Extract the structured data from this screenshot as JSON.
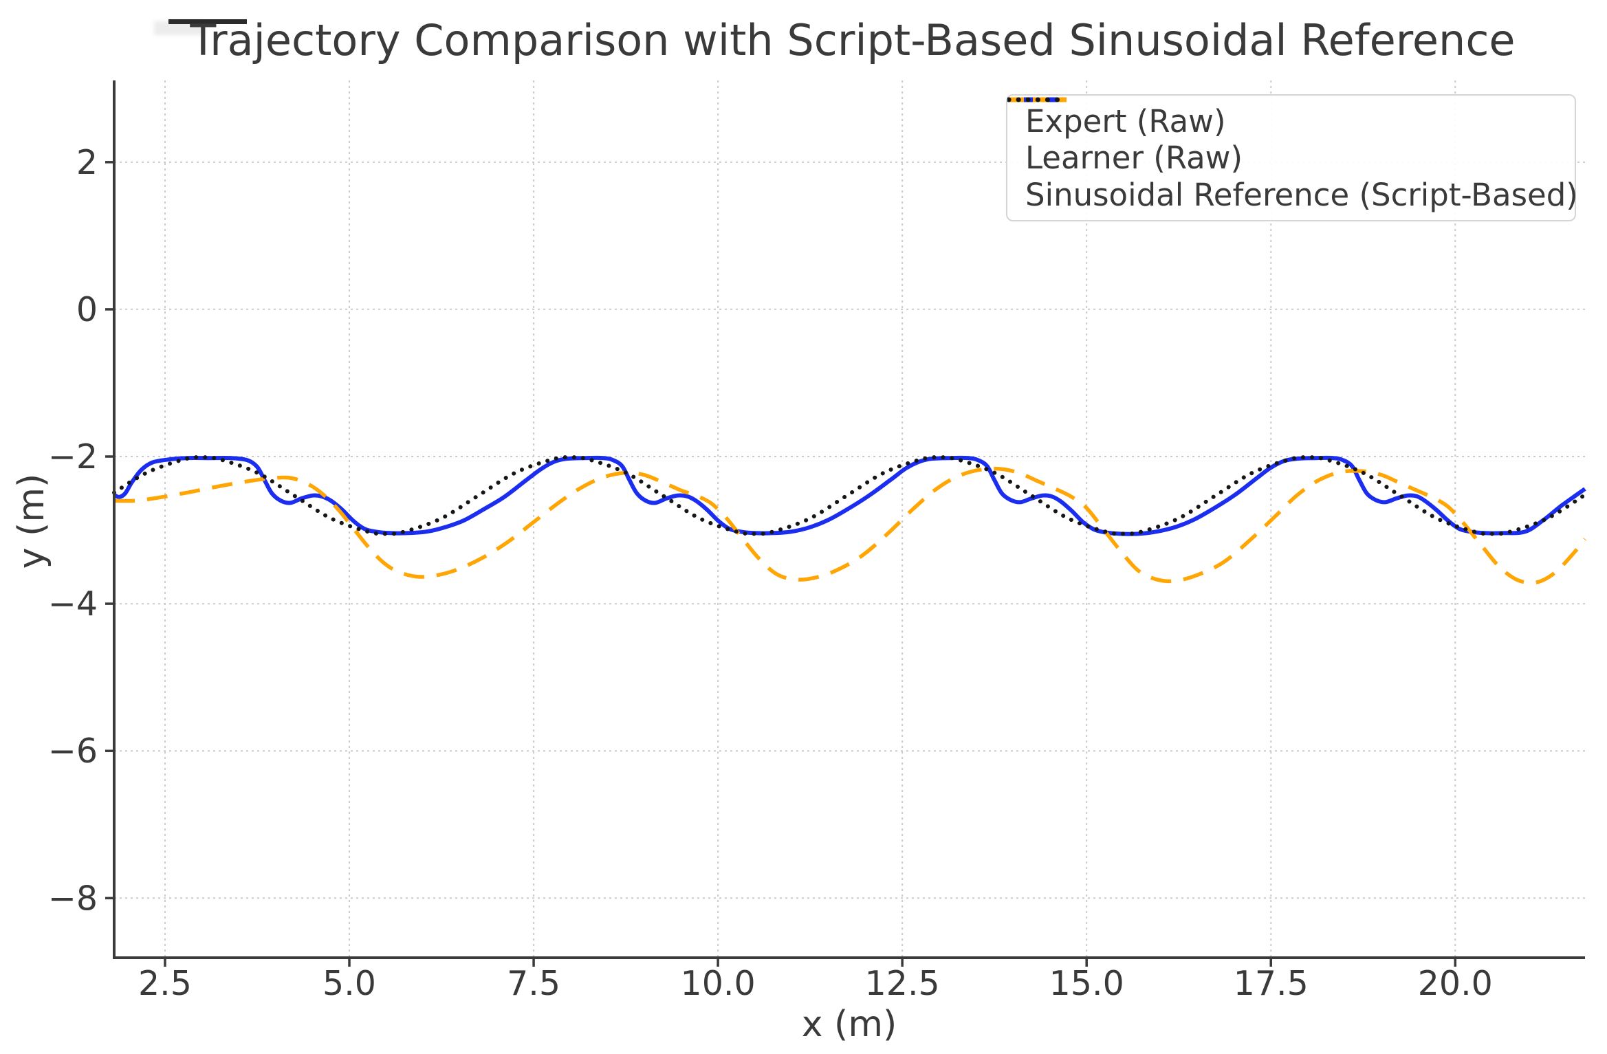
{
  "chart_data": {
    "type": "line",
    "title": "Trajectory Comparison with Script-Based Sinusoidal Reference",
    "xlabel": "x (m)",
    "ylabel": "y (m)",
    "xlim": [
      1.81,
      21.76
    ],
    "ylim": [
      -8.81,
      3.11
    ],
    "grid": true,
    "grid_color": "#cbcbcb",
    "axis_color": "#3a3a3a",
    "text_color": "#3a3a3a",
    "xticks": {
      "values": [
        2.5,
        5.0,
        7.5,
        10.0,
        12.5,
        15.0,
        17.5,
        20.0
      ],
      "labels": [
        "2.5",
        "5.0",
        "7.5",
        "10.0",
        "12.5",
        "15.0",
        "17.5",
        "20.0"
      ]
    },
    "yticks": {
      "values": [
        2,
        0,
        -2,
        -4,
        -6,
        -8
      ],
      "labels": [
        "2",
        "0",
        "−2",
        "−4",
        "−6",
        "−8"
      ]
    },
    "legend": {
      "position": "upper right",
      "border_color": "#d5d5d5"
    },
    "series": [
      {
        "name": "Expert (Raw)",
        "color": "#1b2ef0",
        "style": "solid",
        "width": 6,
        "points": [
          [
            1.81,
            -2.52
          ],
          [
            1.88,
            -2.55
          ],
          [
            1.96,
            -2.5
          ],
          [
            2.05,
            -2.35
          ],
          [
            2.18,
            -2.18
          ],
          [
            2.33,
            -2.08
          ],
          [
            2.55,
            -2.04
          ],
          [
            2.8,
            -2.02
          ],
          [
            3.1,
            -2.02
          ],
          [
            3.4,
            -2.02
          ],
          [
            3.62,
            -2.05
          ],
          [
            3.75,
            -2.14
          ],
          [
            3.85,
            -2.32
          ],
          [
            3.95,
            -2.5
          ],
          [
            4.07,
            -2.6
          ],
          [
            4.2,
            -2.63
          ],
          [
            4.35,
            -2.57
          ],
          [
            4.5,
            -2.53
          ],
          [
            4.62,
            -2.54
          ],
          [
            4.75,
            -2.6
          ],
          [
            4.9,
            -2.72
          ],
          [
            5.05,
            -2.87
          ],
          [
            5.2,
            -2.98
          ],
          [
            5.35,
            -3.02
          ],
          [
            5.55,
            -3.04
          ],
          [
            5.8,
            -3.04
          ],
          [
            6.05,
            -3.02
          ],
          [
            6.3,
            -2.96
          ],
          [
            6.55,
            -2.87
          ],
          [
            6.8,
            -2.73
          ],
          [
            7.1,
            -2.55
          ],
          [
            7.4,
            -2.32
          ],
          [
            7.6,
            -2.17
          ],
          [
            7.78,
            -2.07
          ],
          [
            7.95,
            -2.03
          ],
          [
            8.2,
            -2.02
          ],
          [
            8.45,
            -2.02
          ],
          [
            8.58,
            -2.05
          ],
          [
            8.7,
            -2.13
          ],
          [
            8.8,
            -2.32
          ],
          [
            8.9,
            -2.5
          ],
          [
            9.02,
            -2.6
          ],
          [
            9.15,
            -2.63
          ],
          [
            9.3,
            -2.57
          ],
          [
            9.45,
            -2.53
          ],
          [
            9.58,
            -2.54
          ],
          [
            9.7,
            -2.6
          ],
          [
            9.85,
            -2.72
          ],
          [
            10.0,
            -2.87
          ],
          [
            10.15,
            -2.98
          ],
          [
            10.3,
            -3.02
          ],
          [
            10.5,
            -3.04
          ],
          [
            10.75,
            -3.04
          ],
          [
            11.0,
            -3.02
          ],
          [
            11.25,
            -2.96
          ],
          [
            11.5,
            -2.86
          ],
          [
            11.75,
            -2.72
          ],
          [
            12.05,
            -2.53
          ],
          [
            12.35,
            -2.31
          ],
          [
            12.55,
            -2.16
          ],
          [
            12.73,
            -2.07
          ],
          [
            12.9,
            -2.03
          ],
          [
            13.15,
            -2.02
          ],
          [
            13.4,
            -2.02
          ],
          [
            13.53,
            -2.05
          ],
          [
            13.65,
            -2.13
          ],
          [
            13.75,
            -2.32
          ],
          [
            13.85,
            -2.5
          ],
          [
            13.97,
            -2.59
          ],
          [
            14.1,
            -2.62
          ],
          [
            14.25,
            -2.57
          ],
          [
            14.4,
            -2.53
          ],
          [
            14.52,
            -2.54
          ],
          [
            14.65,
            -2.61
          ],
          [
            14.8,
            -2.74
          ],
          [
            14.95,
            -2.89
          ],
          [
            15.1,
            -2.99
          ],
          [
            15.25,
            -3.03
          ],
          [
            15.45,
            -3.05
          ],
          [
            15.7,
            -3.05
          ],
          [
            15.95,
            -3.02
          ],
          [
            16.2,
            -2.96
          ],
          [
            16.45,
            -2.86
          ],
          [
            16.7,
            -2.72
          ],
          [
            17.0,
            -2.53
          ],
          [
            17.3,
            -2.3
          ],
          [
            17.5,
            -2.15
          ],
          [
            17.68,
            -2.06
          ],
          [
            17.85,
            -2.03
          ],
          [
            18.1,
            -2.02
          ],
          [
            18.35,
            -2.02
          ],
          [
            18.48,
            -2.05
          ],
          [
            18.6,
            -2.13
          ],
          [
            18.7,
            -2.32
          ],
          [
            18.8,
            -2.5
          ],
          [
            18.92,
            -2.59
          ],
          [
            19.05,
            -2.62
          ],
          [
            19.2,
            -2.57
          ],
          [
            19.35,
            -2.53
          ],
          [
            19.48,
            -2.54
          ],
          [
            19.6,
            -2.61
          ],
          [
            19.75,
            -2.73
          ],
          [
            19.9,
            -2.87
          ],
          [
            20.05,
            -2.98
          ],
          [
            20.2,
            -3.02
          ],
          [
            20.4,
            -3.04
          ],
          [
            20.65,
            -3.04
          ],
          [
            20.95,
            -3.02
          ],
          [
            21.2,
            -2.86
          ],
          [
            21.45,
            -2.66
          ],
          [
            21.76,
            -2.44
          ]
        ]
      },
      {
        "name": "Learner (Raw)",
        "color": "#ffa504",
        "style": "dashed",
        "width": 5.5,
        "points": [
          [
            1.81,
            -2.6
          ],
          [
            2.1,
            -2.6
          ],
          [
            2.4,
            -2.56
          ],
          [
            2.8,
            -2.49
          ],
          [
            3.2,
            -2.41
          ],
          [
            3.6,
            -2.34
          ],
          [
            3.9,
            -2.3
          ],
          [
            4.2,
            -2.29
          ],
          [
            4.45,
            -2.38
          ],
          [
            4.65,
            -2.52
          ],
          [
            4.85,
            -2.72
          ],
          [
            5.05,
            -2.97
          ],
          [
            5.25,
            -3.22
          ],
          [
            5.45,
            -3.43
          ],
          [
            5.65,
            -3.56
          ],
          [
            5.9,
            -3.63
          ],
          [
            6.15,
            -3.62
          ],
          [
            6.45,
            -3.54
          ],
          [
            6.8,
            -3.38
          ],
          [
            7.15,
            -3.16
          ],
          [
            7.5,
            -2.89
          ],
          [
            7.85,
            -2.62
          ],
          [
            8.15,
            -2.42
          ],
          [
            8.45,
            -2.28
          ],
          [
            8.75,
            -2.22
          ],
          [
            9.0,
            -2.25
          ],
          [
            9.25,
            -2.35
          ],
          [
            9.5,
            -2.46
          ],
          [
            9.7,
            -2.53
          ],
          [
            9.9,
            -2.63
          ],
          [
            10.1,
            -2.82
          ],
          [
            10.3,
            -3.07
          ],
          [
            10.55,
            -3.38
          ],
          [
            10.8,
            -3.6
          ],
          [
            11.05,
            -3.67
          ],
          [
            11.3,
            -3.65
          ],
          [
            11.6,
            -3.55
          ],
          [
            11.95,
            -3.35
          ],
          [
            12.3,
            -3.05
          ],
          [
            12.65,
            -2.71
          ],
          [
            12.95,
            -2.45
          ],
          [
            13.25,
            -2.27
          ],
          [
            13.55,
            -2.18
          ],
          [
            13.85,
            -2.17
          ],
          [
            14.1,
            -2.23
          ],
          [
            14.35,
            -2.34
          ],
          [
            14.6,
            -2.45
          ],
          [
            14.8,
            -2.55
          ],
          [
            15.0,
            -2.7
          ],
          [
            15.2,
            -2.95
          ],
          [
            15.45,
            -3.27
          ],
          [
            15.7,
            -3.55
          ],
          [
            15.95,
            -3.67
          ],
          [
            16.2,
            -3.69
          ],
          [
            16.5,
            -3.61
          ],
          [
            16.85,
            -3.44
          ],
          [
            17.2,
            -3.15
          ],
          [
            17.55,
            -2.82
          ],
          [
            17.85,
            -2.53
          ],
          [
            18.15,
            -2.32
          ],
          [
            18.45,
            -2.21
          ],
          [
            18.75,
            -2.2
          ],
          [
            19.0,
            -2.25
          ],
          [
            19.25,
            -2.36
          ],
          [
            19.5,
            -2.47
          ],
          [
            19.7,
            -2.56
          ],
          [
            19.9,
            -2.68
          ],
          [
            20.1,
            -2.89
          ],
          [
            20.35,
            -3.2
          ],
          [
            20.6,
            -3.5
          ],
          [
            20.85,
            -3.68
          ],
          [
            21.1,
            -3.71
          ],
          [
            21.35,
            -3.58
          ],
          [
            21.6,
            -3.32
          ],
          [
            21.76,
            -3.12
          ]
        ]
      },
      {
        "name": "Sinusoidal Reference (Script-Based)",
        "color": "#161616",
        "style": "dotted",
        "width": 6,
        "points": [
          [
            1.81,
            -2.49
          ],
          [
            2.25,
            -2.22
          ],
          [
            2.75,
            -2.04
          ],
          [
            3.0,
            -2.01
          ],
          [
            3.25,
            -2.04
          ],
          [
            3.75,
            -2.22
          ],
          [
            4.25,
            -2.53
          ],
          [
            4.75,
            -2.84
          ],
          [
            5.25,
            -3.02
          ],
          [
            5.5,
            -3.05
          ],
          [
            5.75,
            -3.02
          ],
          [
            6.25,
            -2.84
          ],
          [
            6.75,
            -2.53
          ],
          [
            7.25,
            -2.22
          ],
          [
            7.75,
            -2.04
          ],
          [
            8.0,
            -2.01
          ],
          [
            8.25,
            -2.04
          ],
          [
            8.75,
            -2.22
          ],
          [
            9.25,
            -2.53
          ],
          [
            9.75,
            -2.84
          ],
          [
            10.25,
            -3.02
          ],
          [
            10.5,
            -3.05
          ],
          [
            10.75,
            -3.02
          ],
          [
            11.25,
            -2.84
          ],
          [
            11.75,
            -2.53
          ],
          [
            12.25,
            -2.22
          ],
          [
            12.75,
            -2.04
          ],
          [
            13.0,
            -2.01
          ],
          [
            13.25,
            -2.04
          ],
          [
            13.75,
            -2.22
          ],
          [
            14.25,
            -2.53
          ],
          [
            14.75,
            -2.84
          ],
          [
            15.25,
            -3.02
          ],
          [
            15.5,
            -3.05
          ],
          [
            15.75,
            -3.02
          ],
          [
            16.25,
            -2.84
          ],
          [
            16.75,
            -2.53
          ],
          [
            17.25,
            -2.22
          ],
          [
            17.75,
            -2.04
          ],
          [
            18.0,
            -2.01
          ],
          [
            18.25,
            -2.04
          ],
          [
            18.75,
            -2.22
          ],
          [
            19.25,
            -2.53
          ],
          [
            19.75,
            -2.84
          ],
          [
            20.25,
            -3.02
          ],
          [
            20.5,
            -3.05
          ],
          [
            20.75,
            -3.02
          ],
          [
            21.25,
            -2.84
          ],
          [
            21.76,
            -2.52
          ]
        ]
      }
    ]
  }
}
